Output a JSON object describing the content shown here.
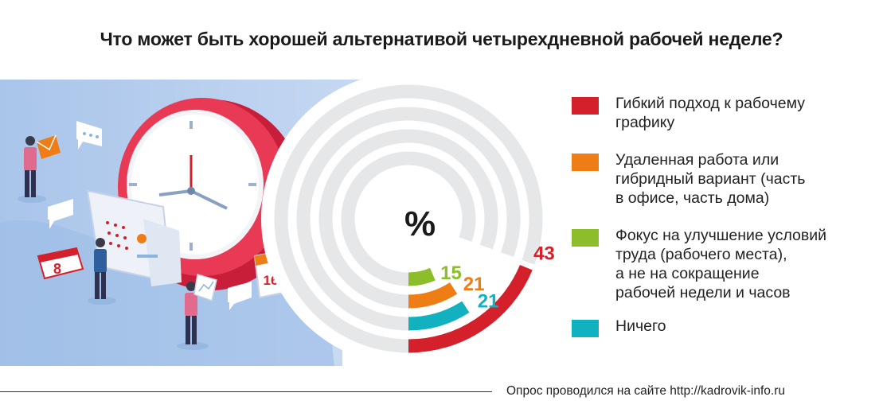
{
  "chart_data": {
    "type": "radial-bar",
    "title": "Что может быть хорошей альтернативой четырехдневной рабочей неделе?",
    "unit_label": "%",
    "categories": [
      "Гибкий подход к рабочему графику",
      "Удаленная работа или гибридный вариант (часть в офисе, часть дома)",
      "Фокус на улучшение условий труда (рабочего места), а не на сокращение рабочей недели и часов",
      "Ничего"
    ],
    "values": [
      43,
      21,
      15,
      21
    ],
    "value_labels": [
      "43",
      "21",
      "15",
      "21"
    ],
    "colors": [
      "#d3202a",
      "#ef7d16",
      "#8cbe2b",
      "#12b1c0"
    ],
    "legend_lines": [
      [
        "Гибкий подход к рабочему",
        "графику"
      ],
      [
        "Удаленная работа или",
        "гибридный вариант (часть",
        "в офисе, часть дома)"
      ],
      [
        "Фокус на улучшение условий",
        "труда (рабочего места),",
        "а не на сокращение",
        "рабочей недели и часов"
      ],
      [
        "Ничего"
      ]
    ],
    "legend_placement": "right",
    "grid": false
  },
  "illustration": {
    "calendar_big_day": "16",
    "calendar_small_day": "8"
  },
  "footer": "Опрос проводился на сайте http://kadrovik-info.ru"
}
